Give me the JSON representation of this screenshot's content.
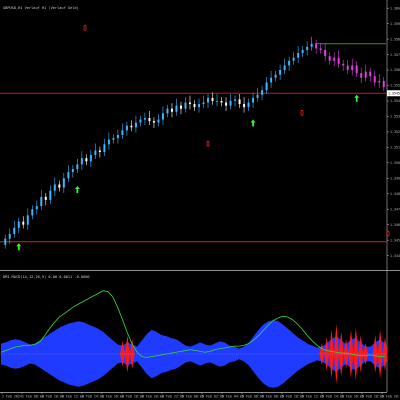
{
  "chart_data": [
    {
      "type": "candlestick",
      "title": "GBPUSD,H1  Verlauf H1 (Verlauf Geld)",
      "ylim": [
        1.3432,
        1.3604
      ],
      "y_ticks": [
        "1.3600",
        "1.3590",
        "1.3580",
        "1.3570",
        "1.3560",
        "1.3550",
        "1.3540",
        "1.3530",
        "1.3520",
        "1.3510",
        "1.3500",
        "1.3490",
        "1.3480",
        "1.3470",
        "1.3460",
        "1.3450",
        "1.3440"
      ],
      "x_ticks": [
        "2 Feb 2024",
        "2 Feb 08:00",
        "2 Feb 10:00",
        "2 Feb 12:00",
        "2 Feb 14:00",
        "2 Feb 16:00",
        "2 Feb 18:00",
        "2 Feb 20:00",
        "2 Feb 22:00",
        "5 Feb 00:00",
        "5 Feb 02:00",
        "5 Feb 04:00",
        "5 Feb 06:00",
        "5 Feb 08:00",
        "5 Feb 10:00",
        "5 Feb 12:00",
        "5 Feb 14:00",
        "5 Feb 16:00",
        "5 Feb 18:00",
        "5 Feb 20:00"
      ],
      "price_label": "1.3545",
      "closes": [
        1.3451,
        1.3454,
        1.3458,
        1.3462,
        1.346,
        1.3466,
        1.347,
        1.3472,
        1.3478,
        1.3476,
        1.3482,
        1.3486,
        1.3484,
        1.349,
        1.3494,
        1.3496,
        1.3499,
        1.3503,
        1.3501,
        1.3505,
        1.3508,
        1.3507,
        1.3512,
        1.3515,
        1.3516,
        1.3518,
        1.3521,
        1.3524,
        1.3523,
        1.3526,
        1.3528,
        1.3529,
        1.3527,
        1.3526,
        1.3528,
        1.3532,
        1.3535,
        1.3533,
        1.3537,
        1.3535,
        1.3539,
        1.3538,
        1.3536,
        1.3538,
        1.3539,
        1.3542,
        1.354,
        1.354,
        1.3539,
        1.3537,
        1.354,
        1.3541,
        1.3538,
        1.3536,
        1.3539,
        1.3542,
        1.3544,
        1.3547,
        1.3552,
        1.3555,
        1.3557,
        1.356,
        1.3563,
        1.3566,
        1.3568,
        1.3571,
        1.3573,
        1.3575,
        1.3577,
        1.3574,
        1.3573,
        1.3569,
        1.3566,
        1.3568,
        1.3564,
        1.3563,
        1.356,
        1.3563,
        1.3558,
        1.3555,
        1.3559,
        1.3556,
        1.3552,
        1.3553,
        1.3549
      ],
      "levels": [
        {
          "price": 1.3545,
          "color": "#d01030"
        },
        {
          "price": 1.3449,
          "color": "#d01030"
        },
        {
          "price": 1.3577,
          "color": "#1aa31a"
        }
      ],
      "up_arrows": [
        3,
        16,
        55,
        78
      ],
      "down_markers": [
        {
          "i": 85,
          "price": 1.3587
        },
        {
          "i": 208,
          "price": 1.3512
        },
        {
          "i": 302,
          "price": 1.3532
        },
        {
          "i": 388,
          "price": 1.3454
        }
      ]
    },
    {
      "type": "area",
      "title": "DMI-MACD(14,12,26,9)  0.00  0.0011  -0.0000",
      "hist": [
        0.5,
        0.6,
        0.8,
        0.9,
        0.8,
        0.6,
        0.4,
        0.5,
        0.8,
        1.1,
        1.4,
        1.7,
        2.0,
        2.2,
        2.4,
        2.5,
        2.6,
        2.5,
        2.3,
        2.1,
        1.9,
        1.6,
        1.2,
        0.8,
        0.4,
        -0.3,
        -0.6,
        -0.4,
        0.2,
        0.8,
        1.4,
        1.8,
        1.6,
        1.3,
        1.2,
        1.0,
        0.9,
        0.6,
        0.3,
        0.2,
        0.4,
        0.6,
        0.4,
        0.3,
        0.5,
        0.7,
        0.6,
        0.3,
        0.2,
        0.0,
        0.2,
        0.6,
        1.2,
        1.8,
        2.3,
        2.6,
        2.7,
        2.6,
        2.3,
        1.9,
        1.5,
        1.1,
        0.8,
        0.5,
        0.3,
        0.1,
        -0.2,
        -0.5,
        -0.9,
        -1.2,
        -0.8,
        -0.4,
        -0.9,
        -1.0,
        -0.6,
        -0.2,
        0.2,
        -0.6,
        -0.9,
        -0.5
      ],
      "signal": [
        0.2,
        0.4,
        0.6,
        0.8,
        0.9,
        1.0,
        1.0,
        1.1,
        1.4,
        2.1,
        2.9,
        3.6,
        4.2,
        4.6,
        5.0,
        5.4,
        5.7,
        6.0,
        6.3,
        6.6,
        6.9,
        7.2,
        7.1,
        6.5,
        5.3,
        3.9,
        2.4,
        1.1,
        0.2,
        -0.3,
        -0.4,
        -0.3,
        -0.2,
        -0.1,
        0.0,
        0.1,
        0.2,
        0.3,
        0.4,
        0.5,
        0.4,
        0.3,
        0.2,
        0.3,
        0.5,
        0.6,
        0.7,
        0.8,
        0.9,
        0.9,
        1.0,
        1.2,
        1.6,
        2.1,
        2.7,
        3.3,
        3.8,
        4.1,
        4.3,
        4.2,
        3.9,
        3.4,
        2.8,
        2.1,
        1.5,
        1.0,
        0.6,
        0.4,
        0.3,
        0.2,
        0.1,
        0.1,
        0.0,
        -0.1,
        -0.2,
        -0.2,
        -0.1,
        -0.2,
        -0.3,
        -0.3
      ]
    }
  ]
}
